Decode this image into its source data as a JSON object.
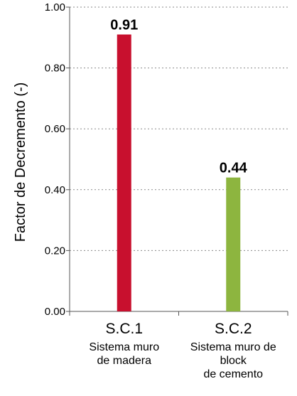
{
  "chart_data": {
    "type": "bar",
    "ylabel": "Factor de Decremento (-)",
    "ylim": [
      0,
      1.0
    ],
    "yticks": [
      "0.00",
      "0.20",
      "0.40",
      "0.60",
      "0.80",
      "1.00"
    ],
    "grid": "horizontal-dotted",
    "categories": [
      {
        "code": "S.C.1",
        "description": [
          "Sistema muro",
          "de madera"
        ],
        "value": 0.91,
        "label": "0.91",
        "color": "#c8102e"
      },
      {
        "code": "S.C.2",
        "description": [
          "Sistema muro de",
          "block",
          "de cemento"
        ],
        "value": 0.44,
        "label": "0.44",
        "color": "#8db53f"
      }
    ]
  }
}
